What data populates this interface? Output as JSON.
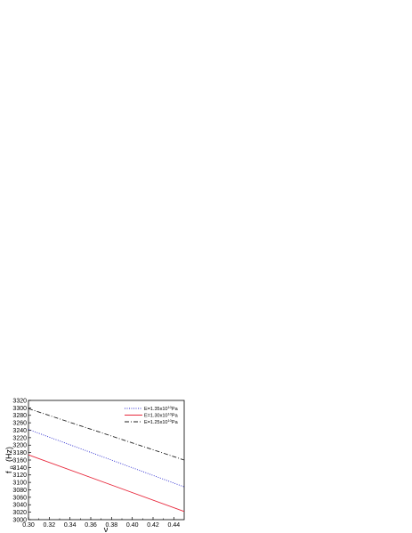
{
  "chart_data": {
    "type": "line",
    "title": "",
    "xlabel": "ν",
    "ylabel": "f",
    "ylabel_sub": "p",
    "ylabel_unit": "(Hz)",
    "xlim": [
      0.3,
      0.45
    ],
    "ylim": [
      3000,
      3320
    ],
    "x_ticks": [
      0.3,
      0.32,
      0.34,
      0.36,
      0.38,
      0.4,
      0.42,
      0.44
    ],
    "x_tick_labels": [
      "0.30",
      "0.32",
      "0.34",
      "0.36",
      "0.38",
      "0.40",
      "0.42",
      "0.44"
    ],
    "y_ticks": [
      3000,
      3020,
      3040,
      3060,
      3080,
      3100,
      3120,
      3140,
      3160,
      3180,
      3200,
      3220,
      3240,
      3260,
      3280,
      3300,
      3320
    ],
    "y_tick_labels": [
      "3000",
      "3020",
      "3040",
      "3060",
      "3080",
      "3100",
      "3120",
      "3140",
      "3160",
      "3180",
      "3200",
      "3220",
      "3240",
      "3260",
      "3280",
      "3300",
      "3320"
    ],
    "grid": false,
    "legend_position": "top-right",
    "series": [
      {
        "name": "E=1.35x10¹⁰Pa",
        "legend_base": "E=1.35x10",
        "legend_exp": "10",
        "legend_unit": "Pa",
        "style": "dotted",
        "color": "#2a2ad0",
        "x": [
          0.3,
          0.45
        ],
        "y": [
          3242,
          3088
        ]
      },
      {
        "name": "E=1.30x10¹⁰Pa",
        "legend_base": "E=1.30x10",
        "legend_exp": "10",
        "legend_unit": "Pa",
        "style": "solid",
        "color": "#e8283c",
        "x": [
          0.3,
          0.45
        ],
        "y": [
          3174,
          3022
        ]
      },
      {
        "name": "E=1.25x10¹⁰Pa",
        "legend_base": "E=1.25x10",
        "legend_exp": "10",
        "legend_unit": "Pa",
        "style": "dashdot",
        "color": "#222222",
        "x": [
          0.3,
          0.45
        ],
        "y": [
          3298,
          3160
        ]
      }
    ]
  }
}
